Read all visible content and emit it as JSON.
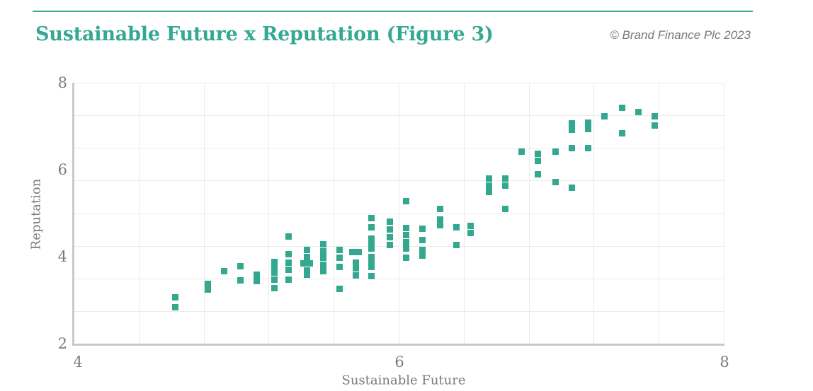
{
  "header": {
    "title": "Sustainable Future x Reputation (Figure 3)",
    "copyright": "© Brand Finance Plc 2023"
  },
  "colors": {
    "accent_teal": "#34a892",
    "marker_teal": "#34a78f",
    "grid_gray": "#e9eaeb",
    "axis_gray": "#c7c9cb",
    "text_gray": "#767b82"
  },
  "chart_data": {
    "type": "scatter",
    "title": "Sustainable Future x Reputation (Figure 3)",
    "xlabel": "Sustainable Future",
    "ylabel": "Reputation",
    "xlim": [
      4,
      8
    ],
    "ylim": [
      2,
      8
    ],
    "x_ticks": [
      4,
      6,
      8
    ],
    "y_ticks": [
      2,
      4,
      6,
      8
    ],
    "x_gridlines": [
      4,
      4.4,
      4.8,
      5.2,
      5.6,
      6.0,
      6.4,
      6.8,
      7.2,
      7.6,
      8.0
    ],
    "y_gridlines": [
      2,
      2.75,
      3.5,
      4.25,
      5.0,
      5.75,
      6.5,
      7.25,
      8.0
    ],
    "grid": true,
    "legend": false,
    "marker_shape": "square",
    "marker_size_px": 9,
    "points": [
      [
        4.62,
        3.07
      ],
      [
        4.62,
        2.84
      ],
      [
        4.82,
        3.38
      ],
      [
        4.82,
        3.24
      ],
      [
        4.92,
        3.66
      ],
      [
        5.02,
        3.78
      ],
      [
        5.02,
        3.45
      ],
      [
        5.12,
        3.58
      ],
      [
        5.12,
        3.44
      ],
      [
        5.23,
        3.87
      ],
      [
        5.23,
        3.75
      ],
      [
        5.23,
        3.64
      ],
      [
        5.23,
        3.47
      ],
      [
        5.23,
        3.28
      ],
      [
        5.32,
        4.47
      ],
      [
        5.32,
        4.05
      ],
      [
        5.32,
        3.86
      ],
      [
        5.32,
        3.7
      ],
      [
        5.32,
        3.47
      ],
      [
        5.43,
        4.15
      ],
      [
        5.43,
        3.99
      ],
      [
        5.41,
        3.84
      ],
      [
        5.45,
        3.84
      ],
      [
        5.43,
        3.69
      ],
      [
        5.43,
        3.58
      ],
      [
        5.53,
        4.29
      ],
      [
        5.53,
        4.13
      ],
      [
        5.53,
        3.98
      ],
      [
        5.53,
        3.82
      ],
      [
        5.53,
        3.67
      ],
      [
        5.63,
        4.16
      ],
      [
        5.63,
        3.98
      ],
      [
        5.63,
        3.77
      ],
      [
        5.63,
        3.26
      ],
      [
        5.71,
        4.1
      ],
      [
        5.75,
        4.1
      ],
      [
        5.73,
        3.86
      ],
      [
        5.73,
        3.73
      ],
      [
        5.73,
        3.57
      ],
      [
        5.83,
        4.88
      ],
      [
        5.83,
        4.68
      ],
      [
        5.83,
        4.42
      ],
      [
        5.83,
        4.3
      ],
      [
        5.83,
        4.18
      ],
      [
        5.83,
        4.0
      ],
      [
        5.83,
        3.88
      ],
      [
        5.83,
        3.76
      ],
      [
        5.83,
        3.56
      ],
      [
        5.94,
        4.8
      ],
      [
        5.94,
        4.62
      ],
      [
        5.94,
        4.45
      ],
      [
        5.94,
        4.27
      ],
      [
        6.04,
        5.28
      ],
      [
        6.04,
        4.66
      ],
      [
        6.04,
        4.5
      ],
      [
        6.04,
        4.34
      ],
      [
        6.04,
        4.18
      ],
      [
        6.04,
        3.98
      ],
      [
        6.14,
        4.64
      ],
      [
        6.14,
        4.39
      ],
      [
        6.14,
        4.16
      ],
      [
        6.14,
        4.03
      ],
      [
        6.25,
        5.09
      ],
      [
        6.25,
        4.86
      ],
      [
        6.25,
        4.72
      ],
      [
        6.35,
        4.68
      ],
      [
        6.35,
        4.27
      ],
      [
        6.44,
        4.71
      ],
      [
        6.44,
        4.55
      ],
      [
        6.55,
        5.8
      ],
      [
        6.55,
        5.64
      ],
      [
        6.55,
        5.49
      ],
      [
        6.65,
        5.8
      ],
      [
        6.65,
        5.64
      ],
      [
        6.65,
        5.1
      ],
      [
        6.75,
        6.41
      ],
      [
        6.85,
        6.36
      ],
      [
        6.85,
        6.2
      ],
      [
        6.85,
        5.9
      ],
      [
        6.96,
        6.41
      ],
      [
        6.96,
        5.71
      ],
      [
        7.06,
        7.06
      ],
      [
        7.06,
        6.92
      ],
      [
        7.06,
        6.5
      ],
      [
        7.06,
        5.58
      ],
      [
        7.16,
        7.08
      ],
      [
        7.16,
        6.94
      ],
      [
        7.16,
        6.5
      ],
      [
        7.26,
        7.22
      ],
      [
        7.37,
        7.42
      ],
      [
        7.37,
        6.83
      ],
      [
        7.47,
        7.33
      ],
      [
        7.57,
        7.22
      ],
      [
        7.57,
        7.02
      ]
    ]
  }
}
